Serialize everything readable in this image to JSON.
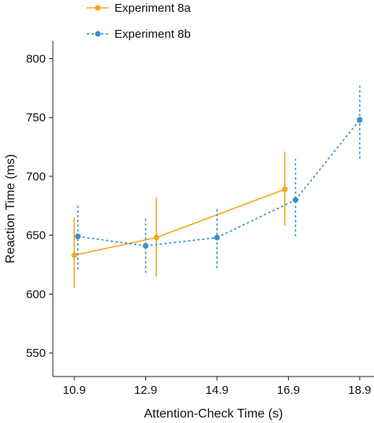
{
  "chart_data": {
    "type": "line",
    "xlabel": "Attention-Check Time (s)",
    "ylabel": "Reaction Time (ms)",
    "xlim": [
      10.3,
      19.3
    ],
    "ylim": [
      530,
      815
    ],
    "x_ticks": [
      "10.9",
      "12.9",
      "14.9",
      "16.9",
      "18.9"
    ],
    "y_ticks": [
      "550",
      "600",
      "650",
      "700",
      "750",
      "800"
    ],
    "legend_position": "top-left",
    "series": [
      {
        "name": "Experiment 8a",
        "color": "#f5a623",
        "line_style": "solid",
        "points": [
          {
            "x": 10.9,
            "y": 633,
            "lo": 605,
            "hi": 665
          },
          {
            "x": 13.2,
            "y": 648,
            "lo": 615,
            "hi": 682
          },
          {
            "x": 16.8,
            "y": 689,
            "lo": 658,
            "hi": 721
          }
        ]
      },
      {
        "name": "Experiment 8b",
        "color": "#3a8fd0",
        "line_style": "dashed",
        "points": [
          {
            "x": 11.0,
            "y": 649,
            "lo": 621,
            "hi": 677
          },
          {
            "x": 12.9,
            "y": 641,
            "lo": 618,
            "hi": 666
          },
          {
            "x": 14.9,
            "y": 648,
            "lo": 622,
            "hi": 674
          },
          {
            "x": 17.1,
            "y": 680,
            "lo": 649,
            "hi": 715
          },
          {
            "x": 18.9,
            "y": 748,
            "lo": 715,
            "hi": 778
          }
        ]
      }
    ]
  }
}
